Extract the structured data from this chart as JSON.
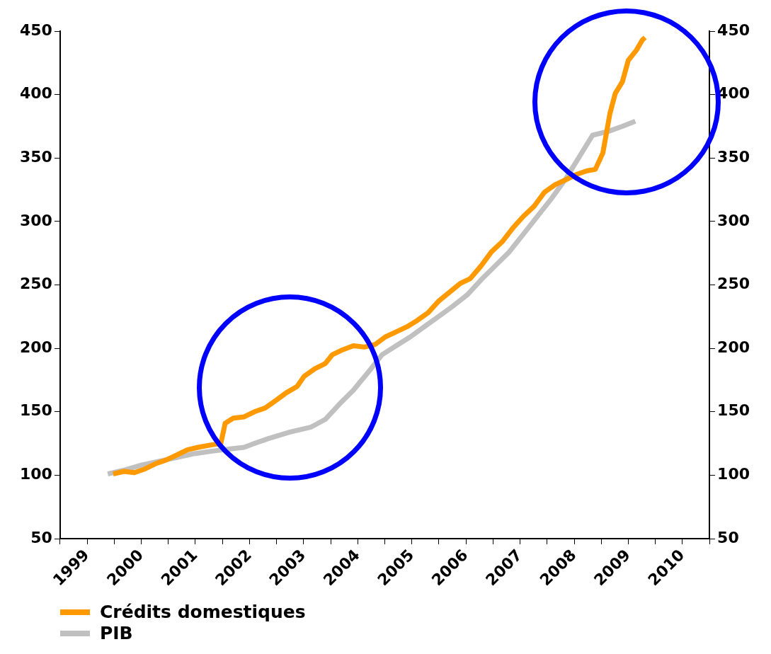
{
  "chart_data": {
    "type": "line",
    "series": [
      {
        "name": "Crédits domestiques",
        "color": "#ff9900",
        "x": [
          1999.98,
          2000.18,
          2000.37,
          2000.57,
          2000.76,
          2000.96,
          2001.16,
          2001.35,
          2001.55,
          2001.81,
          2001.97,
          2002.05,
          2002.2,
          2002.4,
          2002.59,
          2002.79,
          2002.99,
          2003.18,
          2003.38,
          2003.51,
          2003.71,
          2003.9,
          2004.03,
          2004.23,
          2004.42,
          2004.62,
          2004.82,
          2005.01,
          2005.21,
          2005.41,
          2005.6,
          2005.8,
          2005.99,
          2006.19,
          2006.39,
          2006.58,
          2006.78,
          2006.97,
          2007.17,
          2007.37,
          2007.56,
          2007.76,
          2007.95,
          2008.15,
          2008.35,
          2008.54,
          2008.74,
          2008.89,
          2009.03,
          2009.16,
          2009.26,
          2009.39,
          2009.5,
          2009.65,
          2009.76,
          2009.81
        ],
        "values": [
          101,
          103,
          102,
          105,
          109,
          112,
          116,
          120,
          122,
          124,
          125,
          141,
          145,
          146,
          150,
          153,
          159,
          165,
          170,
          178,
          184,
          188,
          195,
          199,
          202,
          201,
          203,
          209,
          213,
          217,
          222,
          228,
          237,
          244,
          251,
          255,
          265,
          276,
          284,
          295,
          304,
          312,
          323,
          329,
          333,
          337,
          340,
          341,
          354,
          385,
          401,
          410,
          427,
          435,
          443,
          445
        ]
      },
      {
        "name": "PIB",
        "color": "#c0c0c0",
        "x": [
          1999.88,
          2000.18,
          2000.5,
          2000.83,
          2001.16,
          2001.48,
          2001.81,
          2002.2,
          2002.4,
          2002.59,
          2002.86,
          2003.25,
          2003.64,
          2003.9,
          2004.16,
          2004.42,
          2004.69,
          2004.95,
          2005.21,
          2005.47,
          2005.73,
          2005.99,
          2006.25,
          2006.52,
          2006.78,
          2007.04,
          2007.3,
          2007.56,
          2007.82,
          2008.08,
          2008.35,
          2008.61,
          2008.84,
          2009.13,
          2009.39,
          2009.63
        ],
        "values": [
          101,
          104,
          108,
          111,
          114,
          117,
          119,
          121,
          122,
          125,
          129,
          134,
          138,
          144,
          156,
          167,
          181,
          195,
          202,
          209,
          217,
          225,
          233,
          242,
          254,
          265,
          276,
          290,
          304,
          318,
          334,
          352,
          368,
          371,
          375,
          379
        ]
      }
    ],
    "xlim": [
      1999,
      2011
    ],
    "xticks": [
      {
        "value": 1999,
        "label": null
      },
      {
        "value": 1999.5,
        "label": "1999"
      },
      {
        "value": 2000,
        "label": null
      },
      {
        "value": 2000.5,
        "label": "2000"
      },
      {
        "value": 2001,
        "label": null
      },
      {
        "value": 2001.5,
        "label": "2001"
      },
      {
        "value": 2002,
        "label": null
      },
      {
        "value": 2002.5,
        "label": "2002"
      },
      {
        "value": 2003,
        "label": null
      },
      {
        "value": 2003.5,
        "label": "2003"
      },
      {
        "value": 2004,
        "label": null
      },
      {
        "value": 2004.5,
        "label": "2004"
      },
      {
        "value": 2005,
        "label": null
      },
      {
        "value": 2005.5,
        "label": "2005"
      },
      {
        "value": 2006,
        "label": null
      },
      {
        "value": 2006.5,
        "label": "2006"
      },
      {
        "value": 2007,
        "label": null
      },
      {
        "value": 2007.5,
        "label": "2007"
      },
      {
        "value": 2008,
        "label": null
      },
      {
        "value": 2008.5,
        "label": "2008"
      },
      {
        "value": 2009,
        "label": null
      },
      {
        "value": 2009.5,
        "label": "2009"
      },
      {
        "value": 2010,
        "label": null
      },
      {
        "value": 2010.5,
        "label": "2010"
      },
      {
        "value": 2011,
        "label": null
      }
    ],
    "ylim": [
      50,
      450
    ],
    "yticks": [
      50,
      100,
      150,
      200,
      250,
      300,
      350,
      400,
      450
    ],
    "y2lim": [
      50,
      450
    ],
    "y2ticks": [
      50,
      100,
      150,
      200,
      250,
      300,
      350,
      400,
      450
    ],
    "grid": false,
    "legend": "bottom left",
    "marker": "none",
    "line_style": "solid"
  }
}
